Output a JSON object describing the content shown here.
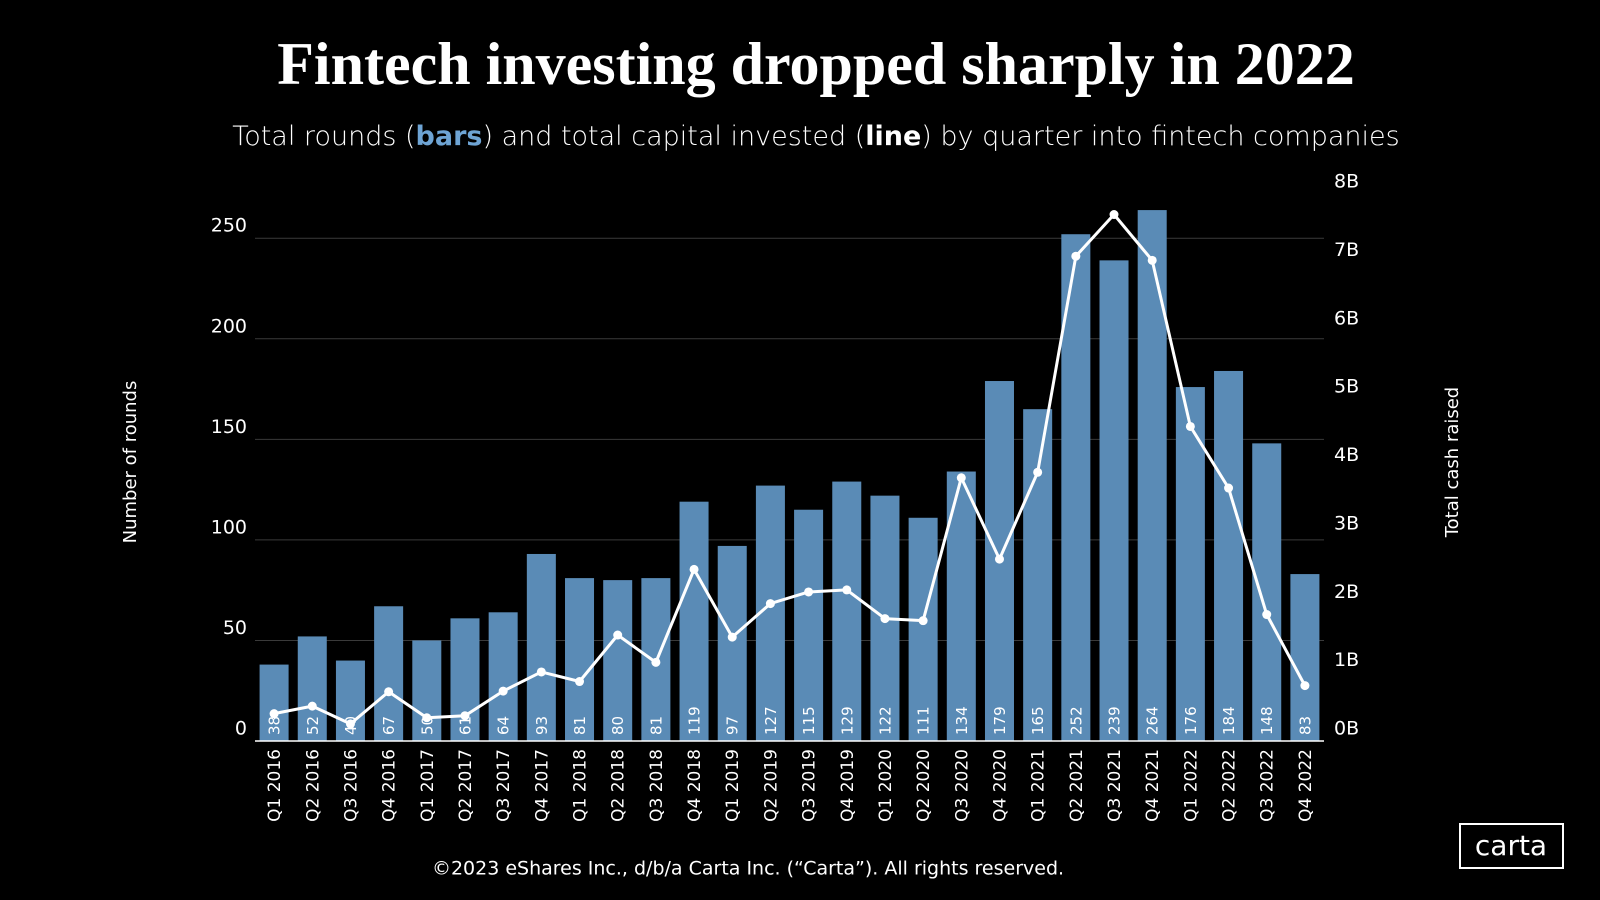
{
  "chart_data": {
    "type": "bar",
    "title": "Fintech investing dropped sharply in 2022",
    "subtitle_parts": [
      "Total rounds (",
      "bars",
      ") and total capital invested (",
      "line",
      ") by quarter into fintech companies"
    ],
    "ylabel": "Number of rounds",
    "y2label": "Total cash raised",
    "categories": [
      "Q1 2016",
      "Q2 2016",
      "Q3 2016",
      "Q4 2016",
      "Q1 2017",
      "Q2 2017",
      "Q3 2017",
      "Q4 2017",
      "Q1 2018",
      "Q2 2018",
      "Q3 2018",
      "Q4 2018",
      "Q1 2019",
      "Q2 2019",
      "Q3 2019",
      "Q4 2019",
      "Q1 2020",
      "Q2 2020",
      "Q3 2020",
      "Q4 2020",
      "Q1 2021",
      "Q2 2021",
      "Q3 2021",
      "Q4 2021",
      "Q1 2022",
      "Q2 2022",
      "Q3 2022",
      "Q4 2022"
    ],
    "series": [
      {
        "type": "bar",
        "color": "#5a8bb6",
        "values": [
          38,
          52,
          40,
          67,
          50,
          61,
          64,
          93,
          81,
          80,
          81,
          119,
          97,
          127,
          115,
          129,
          122,
          111,
          134,
          179,
          165,
          252,
          239,
          264,
          176,
          184,
          148,
          83
        ]
      },
      {
        "type": "line",
        "axis": "y2",
        "color": "#ffffff",
        "values": [
          0.4,
          0.51,
          0.25,
          0.72,
          0.34,
          0.37,
          0.73,
          1.01,
          0.87,
          1.55,
          1.15,
          2.51,
          1.52,
          2.01,
          2.18,
          2.21,
          1.79,
          1.76,
          3.85,
          2.66,
          3.93,
          7.09,
          7.7,
          7.03,
          4.6,
          3.7,
          1.85,
          0.81
        ]
      }
    ],
    "ylim": [
      0,
      272
    ],
    "yticks": [
      0,
      50,
      100,
      150,
      200,
      250
    ],
    "y2lim": [
      0,
      8
    ],
    "y2ticks": [
      {
        "value": 0,
        "label": "0B"
      },
      {
        "value": 1,
        "label": "1B"
      },
      {
        "value": 2,
        "label": "2B"
      },
      {
        "value": 3,
        "label": "3B"
      },
      {
        "value": 4,
        "label": "4B"
      },
      {
        "value": 5,
        "label": "5B"
      },
      {
        "value": 6,
        "label": "6B"
      },
      {
        "value": 7,
        "label": "7B"
      },
      {
        "value": 8,
        "label": "8B"
      }
    ],
    "grid": true,
    "footer": "©2023 eShares Inc., d/b/a Carta Inc. (“Carta”). All rights reserved.",
    "logo": "carta"
  }
}
